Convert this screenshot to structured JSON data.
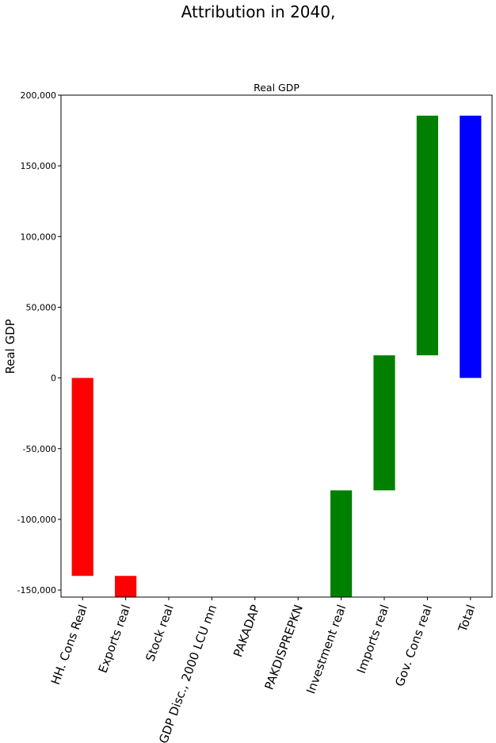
{
  "chart_data": {
    "type": "waterfall",
    "suptitle": "Attribution in 2040,",
    "title": "Real GDP",
    "ylabel": "Real GDP",
    "xlabel": "",
    "ylim": [
      -155000,
      200000
    ],
    "yticks": [
      -150000,
      -100000,
      -50000,
      0,
      50000,
      100000,
      150000,
      200000
    ],
    "ytick_labels": [
      "-150,000",
      "-100,000",
      "-50,000",
      "0",
      "50,000",
      "100,000",
      "150,000",
      "200,000"
    ],
    "categories": [
      "HH. Cons Real",
      "Exports real",
      "Stock real",
      "GDP Disc., 2000 LCU mn",
      "PAKADAP",
      "PAKDISPREPKN",
      "Investment real",
      "Imports real",
      "Gov. Cons real",
      "Total"
    ],
    "bars": [
      {
        "category": "HH. Cons Real",
        "bottom": -140000,
        "top": 0,
        "color": "#ff0000"
      },
      {
        "category": "Exports real",
        "bottom": -160000,
        "top": -140000,
        "color": "#ff0000"
      },
      {
        "category": "Stock real",
        "bottom": -160000,
        "top": -160000,
        "color": "#ff0000"
      },
      {
        "category": "GDP Disc., 2000 LCU mn",
        "bottom": -160000,
        "top": -160000,
        "color": "#008000"
      },
      {
        "category": "PAKADAP",
        "bottom": -160000,
        "top": -160000,
        "color": "#008000"
      },
      {
        "category": "PAKDISPREPKN",
        "bottom": -160000,
        "top": -160000,
        "color": "#008000"
      },
      {
        "category": "Investment real",
        "bottom": -160000,
        "top": -79500,
        "color": "#008000"
      },
      {
        "category": "Imports real",
        "bottom": -79500,
        "top": 16000,
        "color": "#008000"
      },
      {
        "category": "Gov. Cons real",
        "bottom": 16000,
        "top": 185500,
        "color": "#008000"
      },
      {
        "category": "Total",
        "bottom": 0,
        "top": 185500,
        "color": "#0000ff"
      }
    ]
  }
}
